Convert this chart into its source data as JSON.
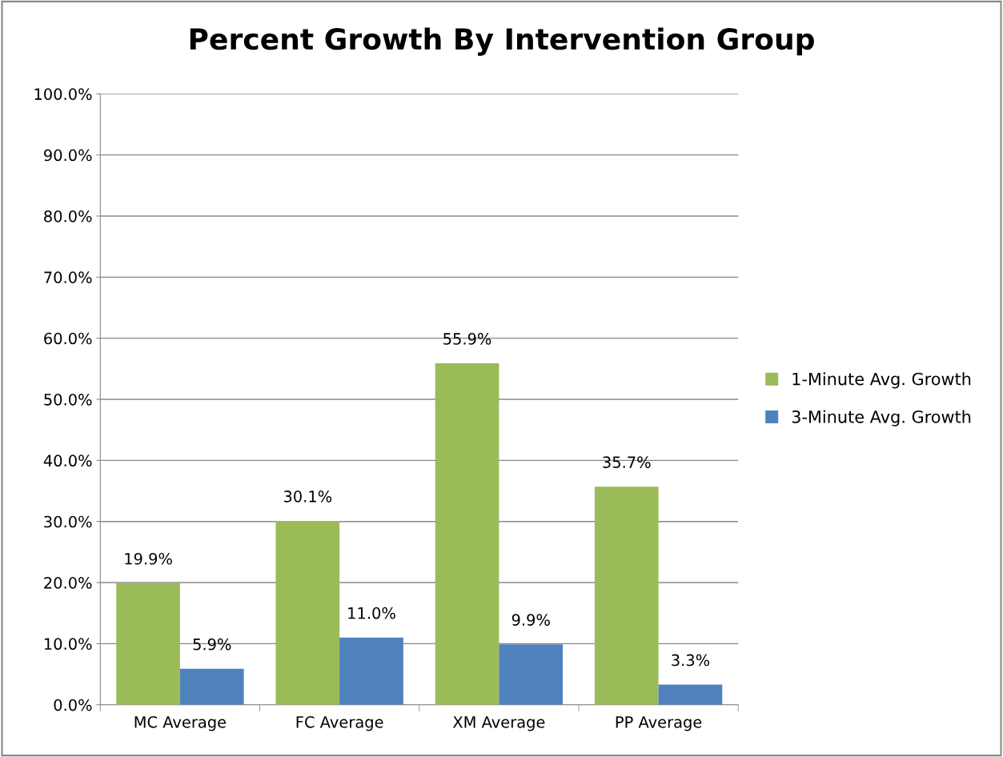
{
  "chart_data": {
    "type": "bar",
    "title": "Percent Growth By Intervention Group",
    "categories": [
      "MC Average",
      "FC Average",
      "XM Average",
      "PP Average"
    ],
    "series": [
      {
        "name": "1-Minute Avg. Growth",
        "color": "#9bbb59",
        "values": [
          19.9,
          30.1,
          55.9,
          35.7
        ],
        "value_labels": [
          "19.9%",
          "30.1%",
          "55.9%",
          "35.7%"
        ]
      },
      {
        "name": "3-Minute Avg. Growth",
        "color": "#4f81bd",
        "values": [
          5.9,
          11.0,
          9.9,
          3.3
        ],
        "value_labels": [
          "5.9%",
          "11.0%",
          "9.9%",
          "3.3%"
        ]
      }
    ],
    "ylim": [
      0,
      100
    ],
    "yticks": [
      {
        "value": 0,
        "label": "0.0%"
      },
      {
        "value": 10,
        "label": "10.0%"
      },
      {
        "value": 20,
        "label": "20.0%"
      },
      {
        "value": 30,
        "label": "30.0%"
      },
      {
        "value": 40,
        "label": "40.0%"
      },
      {
        "value": 50,
        "label": "50.0%"
      },
      {
        "value": 60,
        "label": "60.0%"
      },
      {
        "value": 70,
        "label": "70.0%"
      },
      {
        "value": 80,
        "label": "80.0%"
      },
      {
        "value": 90,
        "label": "90.0%"
      },
      {
        "value": 100,
        "label": "100.0%"
      }
    ],
    "grid": "y",
    "legend": "right"
  }
}
